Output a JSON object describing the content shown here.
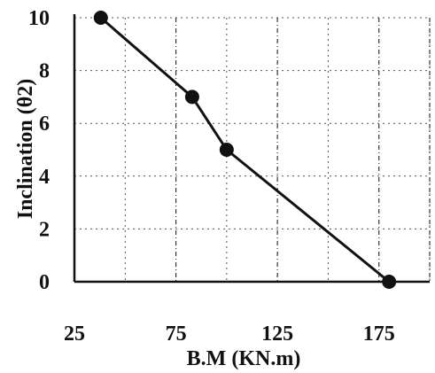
{
  "chart_data": {
    "type": "line",
    "title": "",
    "xlabel": "B.M (KN.m)",
    "ylabel": "Inclination (θ2)",
    "xlim": [
      25,
      200
    ],
    "ylim": [
      0,
      10
    ],
    "x_ticks": [
      25,
      75,
      125,
      175
    ],
    "y_ticks": [
      0,
      2,
      4,
      6,
      8,
      10
    ],
    "grid": true,
    "legend": "none",
    "series": [
      {
        "x": [
          38,
          83,
          100,
          180
        ],
        "y": [
          10,
          7,
          5,
          0
        ]
      }
    ]
  }
}
